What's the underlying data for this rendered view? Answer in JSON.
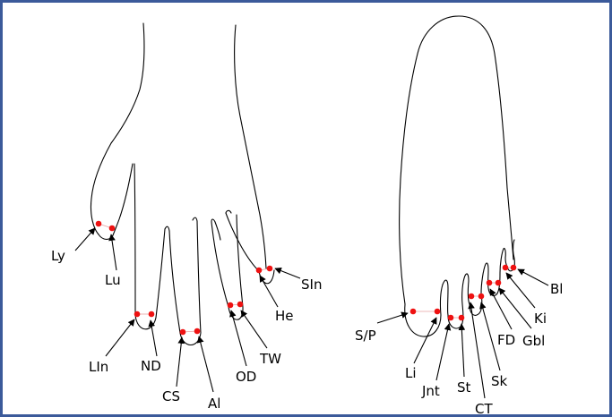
{
  "style": {
    "frame_color": "#3b5a9a",
    "dot_color": "#ee1111",
    "outline_color": "#000000"
  },
  "left_figure": {
    "labels": {
      "ly": "Ly",
      "lu": "Lu",
      "lin": "LIn",
      "nd": "ND",
      "cs": "CS",
      "al": "Al",
      "od": "OD",
      "tw": "TW",
      "he": "He",
      "sin": "SIn"
    }
  },
  "right_figure": {
    "labels": {
      "sp": "S/P",
      "li": "Li",
      "jnt": "Jnt",
      "st": "St",
      "ct": "CT",
      "sk": "Sk",
      "fd": "FD",
      "gbl": "Gbl",
      "ki": "Ki",
      "bl": "Bl"
    }
  }
}
